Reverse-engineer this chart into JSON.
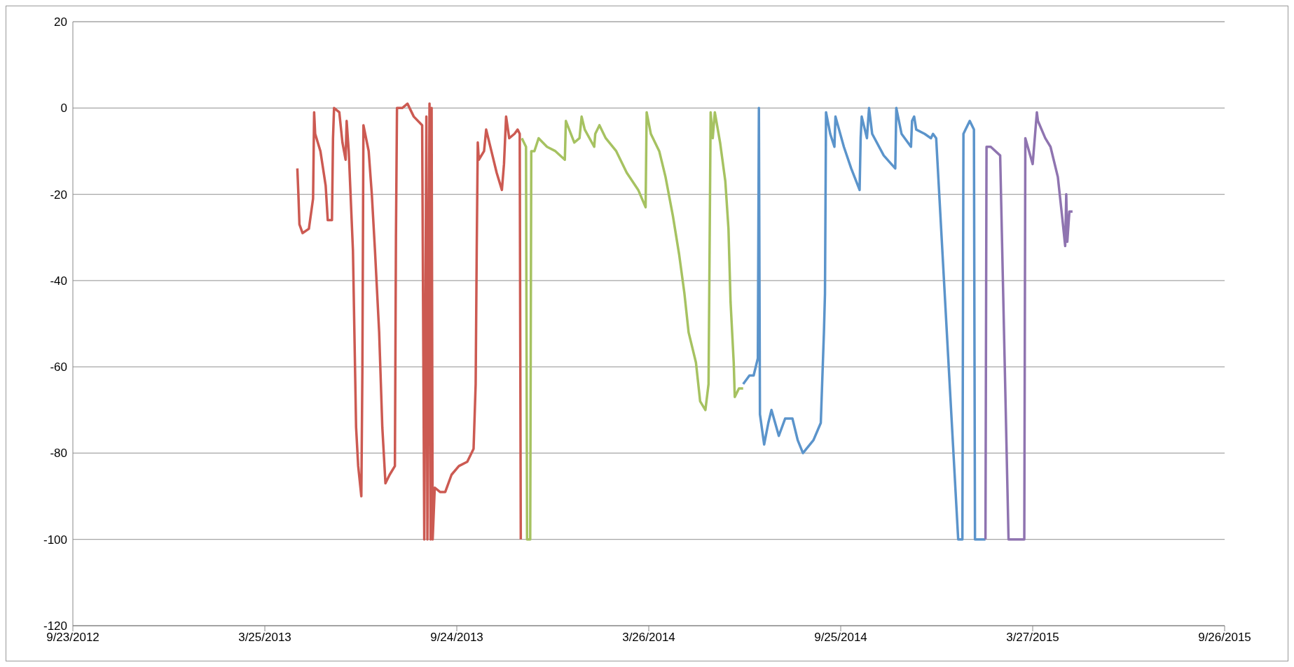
{
  "chart_data": {
    "type": "line",
    "xlim": [
      "2012-09-23",
      "2015-09-26"
    ],
    "xticks": [
      {
        "value": "2012-09-23",
        "label": "9/23/2012"
      },
      {
        "value": "2013-03-25",
        "label": "3/25/2013"
      },
      {
        "value": "2013-09-24",
        "label": "9/24/2013"
      },
      {
        "value": "2014-03-26",
        "label": "3/26/2014"
      },
      {
        "value": "2014-09-25",
        "label": "9/25/2014"
      },
      {
        "value": "2015-03-27",
        "label": "3/27/2015"
      },
      {
        "value": "2015-09-26",
        "label": "9/26/2015"
      }
    ],
    "ylim": [
      -120,
      20
    ],
    "yticks": [
      -120,
      -100,
      -80,
      -60,
      -40,
      -20,
      0,
      20
    ],
    "grid": "y",
    "marker": "none",
    "line_style": "solid",
    "series": [
      {
        "color": "#cc5a52",
        "x": [
          "2013-04-25",
          "2013-04-26",
          "2013-04-27",
          "2013-04-30",
          "2013-05-06",
          "2013-05-10",
          "2013-05-11",
          "2013-05-12",
          "2013-05-17",
          "2013-05-22",
          "2013-05-24",
          "2013-05-28",
          "2013-05-29",
          "2013-05-30",
          "2013-06-04",
          "2013-06-07",
          "2013-06-10",
          "2013-06-11",
          "2013-06-13",
          "2013-06-17",
          "2013-06-20",
          "2013-06-22",
          "2013-06-25",
          "2013-06-26",
          "2013-06-27",
          "2013-07-02",
          "2013-07-05",
          "2013-07-08",
          "2013-07-12",
          "2013-07-15",
          "2013-07-18",
          "2013-07-22",
          "2013-07-27",
          "2013-07-28",
          "2013-07-29",
          "2013-08-03",
          "2013-08-08",
          "2013-08-14",
          "2013-08-22",
          "2013-08-24",
          "2013-08-26",
          "2013-08-27",
          "2013-08-29",
          "2013-08-30",
          "2013-08-31",
          "2013-09-01",
          "2013-09-03",
          "2013-09-08",
          "2013-09-13",
          "2013-09-19",
          "2013-09-26",
          "2013-10-04",
          "2013-10-10",
          "2013-10-12",
          "2013-10-13",
          "2013-10-14",
          "2013-10-15",
          "2013-10-20",
          "2013-10-22",
          "2013-10-27",
          "2013-11-01",
          "2013-11-06",
          "2013-11-08",
          "2013-11-10",
          "2013-11-13",
          "2013-11-18",
          "2013-11-21",
          "2013-11-23",
          "2013-11-24"
        ],
        "values": [
          -14,
          -20,
          -27,
          -29,
          -28,
          -21,
          -1,
          -6,
          -10,
          -18,
          -26,
          -26,
          -7,
          0,
          -1,
          -8,
          -12,
          -3,
          -10,
          -33,
          -74,
          -83,
          -90,
          -61,
          -4,
          -10,
          -20,
          -33,
          -52,
          -74,
          -87,
          -85,
          -83,
          -30,
          0,
          0,
          1,
          -2,
          -4,
          -100,
          -2,
          -100,
          1,
          -100,
          0,
          -100,
          -88,
          -89,
          -89,
          -85,
          -83,
          -82,
          -79,
          -64,
          -33,
          -8,
          -12,
          -10,
          -5,
          -10,
          -15,
          -19,
          -13,
          -2,
          -7,
          -6,
          -5,
          -6,
          -100
        ]
      },
      {
        "color": "#a6c261",
        "x": [
          "2013-11-25",
          "2013-11-29",
          "2013-11-30",
          "2013-12-03",
          "2013-12-04",
          "2013-12-07",
          "2013-12-11",
          "2013-12-19",
          "2013-12-27",
          "2014-01-05",
          "2014-01-06",
          "2014-01-14",
          "2014-01-19",
          "2014-01-21",
          "2014-01-24",
          "2014-02-02",
          "2014-02-03",
          "2014-02-07",
          "2014-02-13",
          "2014-02-23",
          "2014-03-05",
          "2014-03-16",
          "2014-03-23",
          "2014-03-24",
          "2014-03-28",
          "2014-04-05",
          "2014-04-11",
          "2014-04-18",
          "2014-04-24",
          "2014-04-29",
          "2014-05-03",
          "2014-05-10",
          "2014-05-14",
          "2014-05-19",
          "2014-05-22",
          "2014-05-23",
          "2014-05-24",
          "2014-05-26",
          "2014-05-28",
          "2014-06-02",
          "2014-06-07",
          "2014-06-10",
          "2014-06-12",
          "2014-06-15",
          "2014-06-16",
          "2014-06-20",
          "2014-06-24"
        ],
        "values": [
          -7,
          -9,
          -100,
          -100,
          -10,
          -10,
          -7,
          -9,
          -10,
          -12,
          -3,
          -8,
          -7,
          -2,
          -5,
          -9,
          -6,
          -4,
          -7,
          -10,
          -15,
          -19,
          -23,
          -1,
          -6,
          -10,
          -16,
          -25,
          -34,
          -43,
          -52,
          -59,
          -68,
          -70,
          -64,
          -33,
          -1,
          -7,
          -1,
          -8,
          -17,
          -28,
          -45,
          -59,
          -67,
          -65,
          -65
        ]
      },
      {
        "color": "#5b94cb",
        "x": [
          "2014-06-24",
          "2014-06-30",
          "2014-07-04",
          "2014-07-08",
          "2014-07-09",
          "2014-07-10",
          "2014-07-14",
          "2014-07-18",
          "2014-07-21",
          "2014-07-28",
          "2014-08-03",
          "2014-08-10",
          "2014-08-15",
          "2014-08-20",
          "2014-08-30",
          "2014-09-06",
          "2014-09-09",
          "2014-09-10",
          "2014-09-11",
          "2014-09-15",
          "2014-09-19",
          "2014-09-20",
          "2014-09-28",
          "2014-10-05",
          "2014-10-13",
          "2014-10-14",
          "2014-10-15",
          "2014-10-20",
          "2014-10-22",
          "2014-10-25",
          "2014-11-05",
          "2014-11-16",
          "2014-11-17",
          "2014-11-22",
          "2014-12-01",
          "2014-12-02",
          "2014-12-04",
          "2014-12-06",
          "2014-12-14",
          "2014-12-20",
          "2014-12-22",
          "2014-12-25",
          "2015-01-15",
          "2015-01-19",
          "2015-01-20",
          "2015-01-22",
          "2015-01-26",
          "2015-01-30",
          "2015-01-31",
          "2015-02-10"
        ],
        "values": [
          -64,
          -62,
          -62,
          -58,
          0,
          -71,
          -78,
          -73,
          -70,
          -76,
          -72,
          -72,
          -77,
          -80,
          -77,
          -73,
          -52,
          -43,
          -1,
          -6,
          -9,
          -2,
          -9,
          -14,
          -19,
          -7,
          -2,
          -7,
          0,
          -6,
          -11,
          -14,
          0,
          -6,
          -9,
          -3,
          -2,
          -5,
          -6,
          -7,
          -6,
          -7,
          -100,
          -100,
          -6,
          -5,
          -3,
          -5,
          -100,
          -100
        ]
      },
      {
        "color": "#8f74b0",
        "x": [
          "2015-02-10",
          "2015-02-11",
          "2015-02-15",
          "2015-02-24",
          "2015-03-04",
          "2015-03-19",
          "2015-03-20",
          "2015-03-27",
          "2015-03-31",
          "2015-04-01",
          "2015-04-08",
          "2015-04-13",
          "2015-04-20",
          "2015-04-24",
          "2015-04-27",
          "2015-04-28",
          "2015-04-29",
          "2015-05-01",
          "2015-05-04"
        ],
        "values": [
          -100,
          -9,
          -9,
          -11,
          -100,
          -100,
          -7,
          -13,
          -1,
          -3,
          -7,
          -9,
          -16,
          -25,
          -32,
          -20,
          -31,
          -24,
          -24
        ]
      }
    ]
  }
}
